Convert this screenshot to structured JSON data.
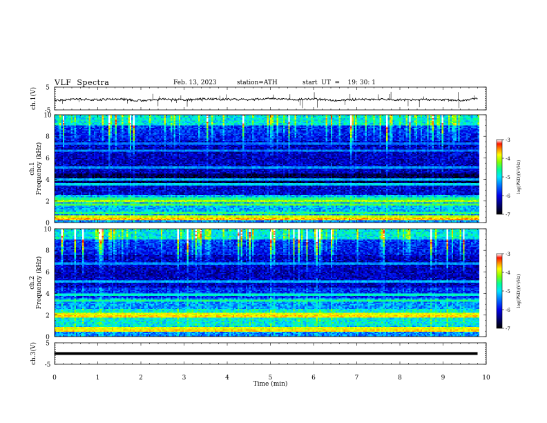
{
  "header": {
    "title": "VLF  Spectra",
    "date": "Feb. 13, 2023",
    "station": "station=ATH",
    "start_ut": "start  UT  =    19: 30: 1"
  },
  "colors": {
    "colormap": [
      "#000000",
      "#00008b",
      "#0000ff",
      "#0080ff",
      "#00ffff",
      "#00ff80",
      "#80ff00",
      "#ffff00",
      "#ff8000",
      "#ff0000",
      "#ffffff"
    ]
  },
  "chart_data": [
    {
      "type": "line",
      "panel": "ch1-waveform",
      "ylabel": "ch.1(V)",
      "ylim": [
        -5,
        5
      ],
      "yticks": [
        "5",
        "-5"
      ],
      "xlim": [
        0,
        10
      ],
      "x": [
        0,
        0.5,
        1,
        1.5,
        2,
        2.5,
        3,
        3.5,
        4,
        4.5,
        5,
        5.5,
        6,
        6.5,
        7,
        7.5,
        8,
        8.5,
        9,
        9.5,
        9.8
      ],
      "y": [
        -0.8,
        -0.3,
        -0.6,
        -0.2,
        -1.0,
        -0.3,
        -0.6,
        -0.2,
        -0.4,
        -0.5,
        0.0,
        -0.4,
        -0.2,
        -0.8,
        -0.4,
        -0.3,
        -0.6,
        -0.5,
        -0.5,
        -0.9,
        0.1
      ]
    },
    {
      "type": "heatmap",
      "panel": "ch1-spectrogram",
      "ylabel": "ch.1\nFrequency  (kHz)",
      "ylim": [
        0,
        10
      ],
      "yticks": [
        "10",
        "8",
        "6",
        "4",
        "2",
        "0"
      ],
      "xlim": [
        0,
        10
      ],
      "colorbar": {
        "label": "log(PSD)(V²/Hz)",
        "range": [
          -7,
          -3
        ],
        "ticks": [
          "-3",
          "-4",
          "-5",
          "-6",
          "-7"
        ]
      }
    },
    {
      "type": "heatmap",
      "panel": "ch2-spectrogram",
      "ylabel": "ch.2\nFrequency  (kHz)",
      "ylim": [
        0,
        10
      ],
      "yticks": [
        "10",
        "8",
        "6",
        "4",
        "2",
        "0"
      ],
      "xlim": [
        0,
        10
      ],
      "colorbar": {
        "label": "log(PSD)(V²/Hz)",
        "range": [
          -7,
          -3
        ],
        "ticks": [
          "-3",
          "-4",
          "-5",
          "-6",
          "-7"
        ]
      }
    },
    {
      "type": "line",
      "panel": "ch3-waveform",
      "ylabel": "ch.3(V)",
      "ylim": [
        -5,
        5
      ],
      "yticks": [
        "5",
        "-5"
      ],
      "xlim": [
        0,
        10
      ],
      "x": [
        0,
        9.8
      ],
      "y": [
        0,
        0
      ]
    }
  ],
  "xaxis": {
    "label": "Time  (min)",
    "ticks": [
      "0",
      "1",
      "2",
      "3",
      "4",
      "5",
      "6",
      "7",
      "8",
      "9",
      "10"
    ]
  }
}
